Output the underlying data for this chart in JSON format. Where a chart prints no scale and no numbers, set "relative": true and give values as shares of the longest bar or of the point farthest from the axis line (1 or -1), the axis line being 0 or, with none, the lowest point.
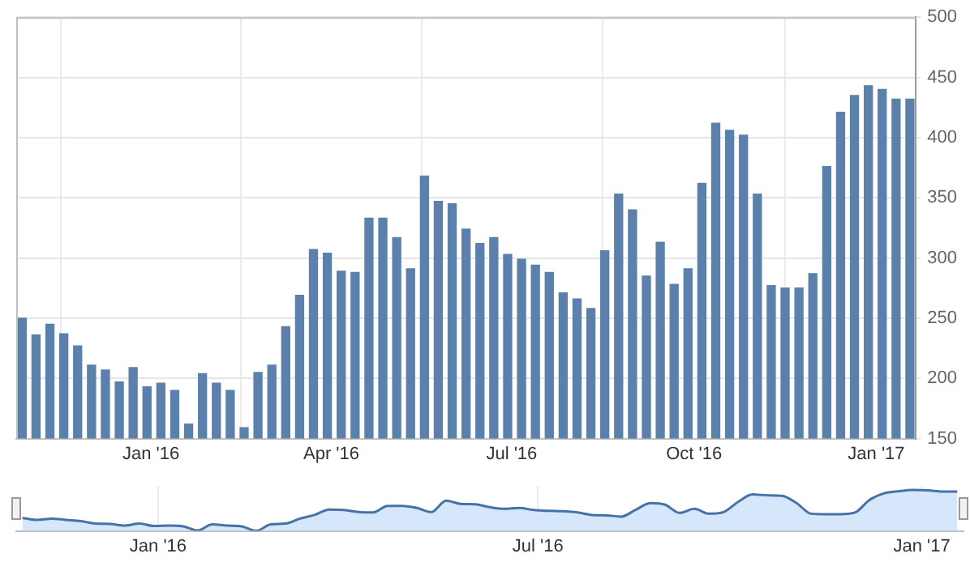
{
  "chart_data": [
    {
      "type": "bar",
      "color": "#5b80ab",
      "grid": true,
      "x": [
        "2015-10-28",
        "2015-11-04",
        "2015-11-11",
        "2015-11-18",
        "2015-11-25",
        "2015-12-02",
        "2015-12-09",
        "2015-12-16",
        "2015-12-23",
        "2015-12-30",
        "2016-01-06",
        "2016-01-13",
        "2016-01-20",
        "2016-01-27",
        "2016-02-03",
        "2016-02-10",
        "2016-02-17",
        "2016-02-24",
        "2016-03-02",
        "2016-03-09",
        "2016-03-16",
        "2016-03-23",
        "2016-03-30",
        "2016-04-06",
        "2016-04-13",
        "2016-04-20",
        "2016-04-27",
        "2016-05-04",
        "2016-05-11",
        "2016-05-18",
        "2016-05-25",
        "2016-06-01",
        "2016-06-08",
        "2016-06-15",
        "2016-06-22",
        "2016-06-29",
        "2016-07-06",
        "2016-07-13",
        "2016-07-20",
        "2016-07-27",
        "2016-08-03",
        "2016-08-10",
        "2016-08-17",
        "2016-08-24",
        "2016-08-31",
        "2016-09-07",
        "2016-09-14",
        "2016-09-21",
        "2016-09-28",
        "2016-10-05",
        "2016-10-12",
        "2016-10-19",
        "2016-10-26",
        "2016-11-02",
        "2016-11-09",
        "2016-11-16",
        "2016-11-23",
        "2016-11-30",
        "2016-12-07",
        "2016-12-14",
        "2016-12-21",
        "2016-12-28",
        "2017-01-04",
        "2017-01-11",
        "2017-01-18"
      ],
      "values": [
        250,
        236,
        245,
        237,
        227,
        211,
        207,
        197,
        209,
        193,
        196,
        190,
        162,
        204,
        196,
        190,
        159,
        205,
        211,
        243,
        269,
        307,
        304,
        289,
        288,
        333,
        333,
        317,
        291,
        368,
        347,
        345,
        324,
        312,
        317,
        303,
        299,
        294,
        288,
        271,
        266,
        258,
        306,
        353,
        340,
        285,
        313,
        278,
        291,
        362,
        412,
        406,
        402,
        353,
        277,
        275,
        275,
        287,
        376,
        421,
        435,
        443,
        440,
        432,
        432
      ],
      "xlim": [
        "2015-10-25",
        "2017-01-21"
      ],
      "xticks": [
        {
          "value": "2016-01-01",
          "label": "Jan '16"
        },
        {
          "value": "2016-04-01",
          "label": "Apr '16"
        },
        {
          "value": "2016-07-01",
          "label": "Jul '16"
        },
        {
          "value": "2016-10-01",
          "label": "Oct '16"
        },
        {
          "value": "2017-01-01",
          "label": "Jan '17"
        }
      ],
      "ylim": [
        150,
        500
      ],
      "yticks": [
        150,
        200,
        250,
        300,
        350,
        400,
        450,
        500
      ]
    },
    {
      "type": "area",
      "color": "#4572a7",
      "grid": "x",
      "tick_labels": "x",
      "relative": true,
      "x": [
        "2015-10-28",
        "2015-11-04",
        "2015-11-11",
        "2015-11-18",
        "2015-11-25",
        "2015-12-02",
        "2015-12-09",
        "2015-12-16",
        "2015-12-23",
        "2015-12-30",
        "2016-01-06",
        "2016-01-13",
        "2016-01-20",
        "2016-01-27",
        "2016-02-03",
        "2016-02-10",
        "2016-02-17",
        "2016-02-24",
        "2016-03-02",
        "2016-03-09",
        "2016-03-16",
        "2016-03-23",
        "2016-03-30",
        "2016-04-06",
        "2016-04-13",
        "2016-04-20",
        "2016-04-27",
        "2016-05-04",
        "2016-05-11",
        "2016-05-18",
        "2016-05-25",
        "2016-06-01",
        "2016-06-08",
        "2016-06-15",
        "2016-06-22",
        "2016-06-29",
        "2016-07-06",
        "2016-07-13",
        "2016-07-20",
        "2016-07-27",
        "2016-08-03",
        "2016-08-10",
        "2016-08-17",
        "2016-08-24",
        "2016-08-31",
        "2016-09-07",
        "2016-09-14",
        "2016-09-21",
        "2016-09-28",
        "2016-10-05",
        "2016-10-12",
        "2016-10-19",
        "2016-10-26",
        "2016-11-02",
        "2016-11-09",
        "2016-11-16",
        "2016-11-23",
        "2016-11-30",
        "2016-12-07",
        "2016-12-14",
        "2016-12-21",
        "2016-12-28",
        "2017-01-04",
        "2017-01-11",
        "2017-01-18"
      ],
      "values": [
        0.32,
        0.27,
        0.3,
        0.27,
        0.24,
        0.18,
        0.17,
        0.13,
        0.18,
        0.12,
        0.13,
        0.11,
        0.01,
        0.16,
        0.13,
        0.11,
        0,
        0.16,
        0.18,
        0.3,
        0.39,
        0.52,
        0.51,
        0.46,
        0.45,
        0.61,
        0.61,
        0.56,
        0.46,
        0.74,
        0.66,
        0.65,
        0.58,
        0.54,
        0.56,
        0.51,
        0.49,
        0.48,
        0.45,
        0.39,
        0.38,
        0.35,
        0.52,
        0.68,
        0.64,
        0.44,
        0.54,
        0.42,
        0.46,
        0.71,
        0.89,
        0.87,
        0.86,
        0.68,
        0.42,
        0.41,
        0.41,
        0.45,
        0.76,
        0.92,
        0.97,
        1,
        0.99,
        0.96,
        0.96
      ],
      "xlim": [
        "2015-10-25",
        "2017-01-21"
      ],
      "xticks": [
        {
          "value": "2016-01-01",
          "label": "Jan '16"
        },
        {
          "value": "2016-07-01",
          "label": "Jul '16"
        },
        {
          "value": "2017-01-01",
          "label": "Jan '17"
        }
      ]
    }
  ]
}
